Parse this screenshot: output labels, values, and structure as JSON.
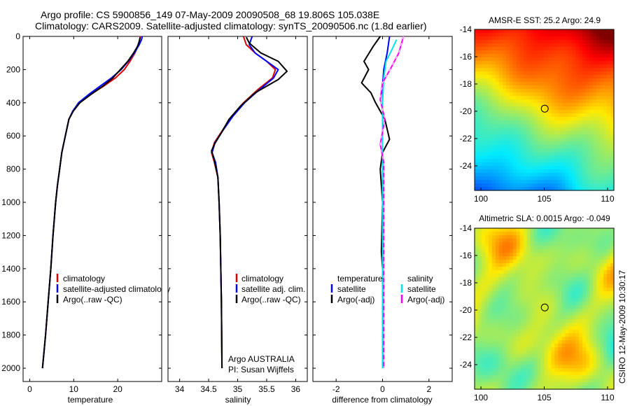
{
  "header": {
    "line1": "Argo profile: CS 5900856_149 07-May-2009 20090508_68 19.806S 105.038E",
    "line2": "Climatology: CARS2009. Satellite-adjusted climatology: synTS_20090506.nc (1.8d earlier)"
  },
  "side_label": "CSIRO 12-May-2009 10:30:17",
  "colors": {
    "climatology": "#e00000",
    "satellite": "#0000ff",
    "argo": "#000000",
    "cyan": "#00e5e5",
    "magenta": "#ff00ff",
    "grid": "#000000"
  },
  "chart_data": [
    {
      "type": "line",
      "panel": "temperature",
      "xlabel": "temperature",
      "ylabel": "",
      "xlim": [
        -1.5,
        30
      ],
      "ylim": [
        0,
        2080
      ],
      "y_inverted": true,
      "xticks": [
        0,
        10,
        20
      ],
      "yticks": [
        0,
        200,
        400,
        600,
        800,
        1000,
        1200,
        1400,
        1600,
        1800,
        2000
      ],
      "legend": {
        "placement": "center",
        "entries": [
          "climatology",
          "satellite-adjusted climatology",
          "Argo(..raw -QC)"
        ]
      },
      "series": [
        {
          "name": "climatology",
          "color_key": "climatology",
          "points": [
            [
              25.2,
              0
            ],
            [
              25.0,
              20
            ],
            [
              24.7,
              50
            ],
            [
              23.9,
              100
            ],
            [
              22.8,
              150
            ],
            [
              21.5,
              200
            ],
            [
              19.5,
              250
            ],
            [
              16.8,
              300
            ],
            [
              13.8,
              350
            ],
            [
              11.2,
              400
            ],
            [
              9.8,
              450
            ],
            [
              8.9,
              500
            ],
            [
              8.1,
              600
            ],
            [
              7.3,
              700
            ],
            [
              6.8,
              800
            ],
            [
              6.3,
              900
            ],
            [
              5.9,
              1000
            ],
            [
              5.3,
              1200
            ],
            [
              4.8,
              1400
            ],
            [
              4.2,
              1600
            ],
            [
              3.6,
              1800
            ],
            [
              2.9,
              2000
            ]
          ]
        },
        {
          "name": "satellite-adjusted climatology",
          "color_key": "satellite",
          "points": [
            [
              25.6,
              0
            ],
            [
              25.4,
              20
            ],
            [
              24.9,
              50
            ],
            [
              23.8,
              100
            ],
            [
              22.4,
              150
            ],
            [
              20.8,
              200
            ],
            [
              18.6,
              250
            ],
            [
              16.0,
              300
            ],
            [
              13.4,
              350
            ],
            [
              11.1,
              400
            ],
            [
              9.8,
              450
            ],
            [
              8.9,
              500
            ],
            [
              8.1,
              600
            ],
            [
              7.3,
              700
            ],
            [
              6.8,
              800
            ],
            [
              6.3,
              900
            ],
            [
              5.9,
              1000
            ],
            [
              5.3,
              1200
            ],
            [
              4.8,
              1400
            ],
            [
              4.2,
              1600
            ],
            [
              3.6,
              1800
            ],
            [
              2.9,
              2000
            ]
          ]
        },
        {
          "name": "Argo(..raw -QC)",
          "color_key": "argo",
          "points": [
            [
              25.1,
              5
            ],
            [
              24.9,
              30
            ],
            [
              24.5,
              60
            ],
            [
              23.6,
              100
            ],
            [
              22.3,
              150
            ],
            [
              20.6,
              200
            ],
            [
              18.9,
              250
            ],
            [
              16.6,
              300
            ],
            [
              13.9,
              350
            ],
            [
              11.4,
              400
            ],
            [
              9.9,
              450
            ],
            [
              8.9,
              500
            ],
            [
              8.1,
              600
            ],
            [
              7.3,
              700
            ],
            [
              6.8,
              800
            ],
            [
              6.3,
              900
            ],
            [
              5.9,
              1000
            ],
            [
              5.3,
              1200
            ],
            [
              4.8,
              1400
            ],
            [
              4.2,
              1600
            ],
            [
              3.6,
              1800
            ],
            [
              2.9,
              2000
            ]
          ]
        }
      ]
    },
    {
      "type": "line",
      "panel": "salinity",
      "xlabel": "salinity",
      "ylabel": "",
      "xlim": [
        33.8,
        36.2
      ],
      "ylim": [
        0,
        2080
      ],
      "y_inverted": true,
      "xticks": [
        34,
        34.5,
        35,
        35.5,
        36
      ],
      "legend": {
        "placement": "center",
        "entries": [
          "climatology",
          "satellite adj. clim.",
          "Argo(..raw -QC)"
        ]
      },
      "annotation": [
        "Argo AUSTRALIA",
        "PI: Susan Wijffels"
      ],
      "series": [
        {
          "name": "climatology",
          "color_key": "climatology",
          "points": [
            [
              35.1,
              0
            ],
            [
              35.15,
              50
            ],
            [
              35.3,
              100
            ],
            [
              35.5,
              150
            ],
            [
              35.65,
              200
            ],
            [
              35.6,
              250
            ],
            [
              35.35,
              320
            ],
            [
              35.1,
              400
            ],
            [
              34.9,
              480
            ],
            [
              34.75,
              560
            ],
            [
              34.6,
              640
            ],
            [
              34.55,
              700
            ],
            [
              34.6,
              760
            ],
            [
              34.66,
              850
            ],
            [
              34.68,
              1000
            ],
            [
              34.7,
              1200
            ],
            [
              34.72,
              1600
            ],
            [
              34.73,
              2000
            ]
          ]
        },
        {
          "name": "satellite adj. clim.",
          "color_key": "satellite",
          "points": [
            [
              35.25,
              0
            ],
            [
              35.2,
              50
            ],
            [
              35.3,
              100
            ],
            [
              35.5,
              150
            ],
            [
              35.7,
              200
            ],
            [
              35.62,
              250
            ],
            [
              35.38,
              320
            ],
            [
              35.12,
              400
            ],
            [
              34.92,
              480
            ],
            [
              34.76,
              560
            ],
            [
              34.61,
              640
            ],
            [
              34.56,
              700
            ],
            [
              34.62,
              760
            ],
            [
              34.66,
              850
            ],
            [
              34.68,
              1000
            ],
            [
              34.7,
              1200
            ],
            [
              34.72,
              1600
            ],
            [
              34.73,
              2000
            ]
          ]
        },
        {
          "name": "Argo(..raw -QC)",
          "color_key": "argo",
          "points": [
            [
              35.15,
              5
            ],
            [
              35.2,
              40
            ],
            [
              35.4,
              100
            ],
            [
              35.7,
              150
            ],
            [
              35.85,
              210
            ],
            [
              35.7,
              260
            ],
            [
              35.3,
              340
            ],
            [
              35.05,
              420
            ],
            [
              34.85,
              500
            ],
            [
              34.72,
              580
            ],
            [
              34.6,
              650
            ],
            [
              34.55,
              690
            ],
            [
              34.6,
              750
            ],
            [
              34.66,
              850
            ],
            [
              34.68,
              1000
            ],
            [
              34.7,
              1200
            ],
            [
              34.72,
              1600
            ],
            [
              34.73,
              2000
            ]
          ]
        }
      ]
    },
    {
      "type": "line",
      "panel": "difference",
      "xlabel": "difference from climatology",
      "ylabel": "",
      "xlim": [
        -3,
        3
      ],
      "ylim": [
        0,
        2080
      ],
      "y_inverted": true,
      "xticks": [
        -2,
        0,
        2
      ],
      "legend": {
        "placement": "center",
        "entries": [
          "temperature",
          "satellite",
          "Argo(-adj)",
          "salinity",
          "satellite",
          "Argo(-adj)"
        ]
      },
      "series": [
        {
          "name": "temperature satellite",
          "color_key": "satellite",
          "points": [
            [
              0.3,
              0
            ],
            [
              0.2,
              100
            ],
            [
              0.05,
              200
            ],
            [
              0.0,
              300
            ],
            [
              0.0,
              400
            ],
            [
              0.0,
              600
            ],
            [
              0.0,
              800
            ],
            [
              0.0,
              1200
            ],
            [
              0.0,
              1600
            ],
            [
              0.0,
              2000
            ]
          ]
        },
        {
          "name": "temperature Argo(-adj)",
          "color_key": "argo",
          "points": [
            [
              -0.1,
              0
            ],
            [
              -0.4,
              60
            ],
            [
              -0.8,
              150
            ],
            [
              -0.6,
              200
            ],
            [
              -0.9,
              280
            ],
            [
              -0.5,
              340
            ],
            [
              -0.3,
              400
            ],
            [
              0.1,
              500
            ],
            [
              0.3,
              620
            ],
            [
              0.0,
              700
            ],
            [
              -0.1,
              800
            ],
            [
              0.0,
              1000
            ],
            [
              -0.05,
              1300
            ],
            [
              0.05,
              1500
            ],
            [
              0.0,
              1700
            ],
            [
              0.0,
              2000
            ]
          ]
        },
        {
          "name": "salinity satellite",
          "color_key": "cyan",
          "points": [
            [
              0.6,
              20
            ],
            [
              0.4,
              80
            ],
            [
              0.15,
              150
            ],
            [
              0.05,
              250
            ],
            [
              0.0,
              400
            ],
            [
              0.0,
              700
            ],
            [
              0.0,
              1000
            ],
            [
              0.0,
              1500
            ],
            [
              0.0,
              2000
            ]
          ]
        },
        {
          "name": "salinity Argo(-adj)",
          "color_key": "magenta",
          "points": [
            [
              0.9,
              0
            ],
            [
              0.7,
              100
            ],
            [
              0.4,
              180
            ],
            [
              0.0,
              280
            ],
            [
              -0.1,
              380
            ],
            [
              0.1,
              500
            ],
            [
              -0.1,
              650
            ],
            [
              0.05,
              760
            ],
            [
              0.05,
              1000
            ],
            [
              0.05,
              1500
            ],
            [
              0.05,
              2000
            ]
          ]
        }
      ]
    },
    {
      "type": "heatmap",
      "panel": "sst_map",
      "title": "AMSR-E SST: 25.2 Argo: 24.9",
      "xlim": [
        99.5,
        110.5
      ],
      "ylim": [
        -25.8,
        -14
      ],
      "xticks": [
        100,
        105,
        110
      ],
      "yticks": [
        -14,
        -16,
        -18,
        -20,
        -22,
        -24
      ],
      "marker": [
        105.04,
        -19.81
      ]
    },
    {
      "type": "heatmap",
      "panel": "sla_map",
      "title": "Altimetric SLA: 0.0015 Argo: -0.049",
      "xlim": [
        99.5,
        110.5
      ],
      "ylim": [
        -25.8,
        -14
      ],
      "xticks": [
        100,
        105,
        110
      ],
      "yticks": [
        -14,
        -16,
        -18,
        -20,
        -22,
        -24
      ],
      "marker": [
        105.04,
        -19.81
      ]
    }
  ]
}
